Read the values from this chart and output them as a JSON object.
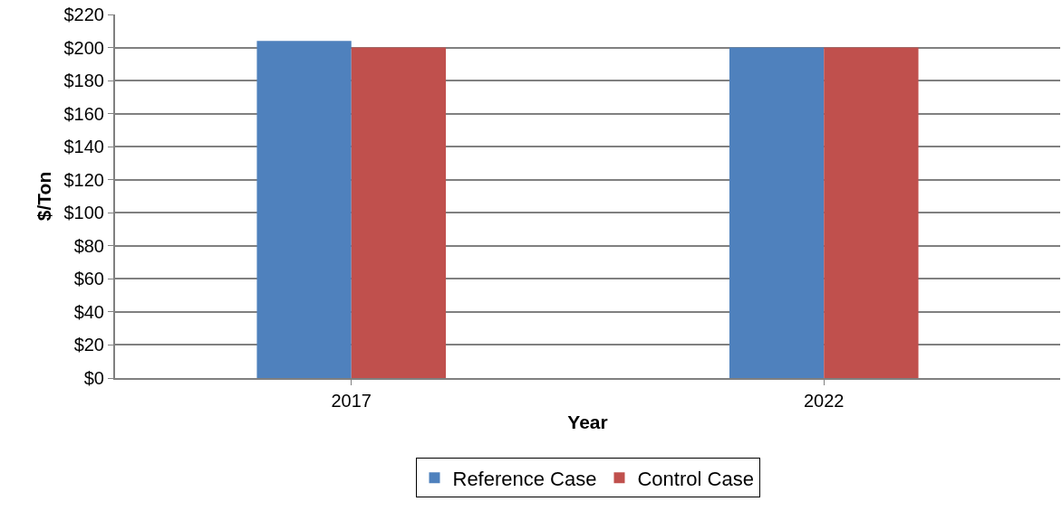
{
  "chart_data": {
    "type": "bar",
    "xlabel": "Year",
    "ylabel": "$/Ton",
    "categories": [
      "2017",
      "2022"
    ],
    "series": [
      {
        "name": "Reference Case",
        "color": "#4f81bd",
        "values": [
          204,
          200
        ]
      },
      {
        "name": "Control Case",
        "color": "#c0504d",
        "values": [
          200,
          200
        ]
      }
    ],
    "ylim": [
      0,
      220
    ],
    "yticks": [
      {
        "value": 0,
        "label": "$0"
      },
      {
        "value": 20,
        "label": "$20"
      },
      {
        "value": 40,
        "label": "$40"
      },
      {
        "value": 60,
        "label": "$60"
      },
      {
        "value": 80,
        "label": "$80"
      },
      {
        "value": 100,
        "label": "$100"
      },
      {
        "value": 120,
        "label": "$120"
      },
      {
        "value": 140,
        "label": "$140"
      },
      {
        "value": 160,
        "label": "$160"
      },
      {
        "value": 180,
        "label": "$180"
      },
      {
        "value": 200,
        "label": "$200"
      },
      {
        "value": 220,
        "label": "$220"
      }
    ],
    "grid": "y",
    "legend": "bottom"
  }
}
